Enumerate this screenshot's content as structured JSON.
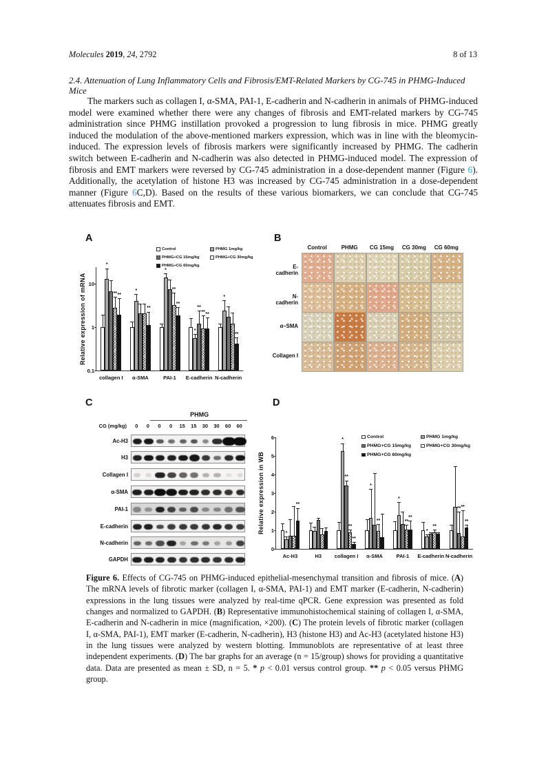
{
  "header": {
    "left_segments": [
      {
        "t": "Molecules ",
        "i": 1
      },
      {
        "t": "2019",
        "b": 1
      },
      {
        "t": ", "
      },
      {
        "t": "24",
        "i": 1
      },
      {
        "t": ", 2792"
      }
    ],
    "page_info": "8 of 13"
  },
  "section": {
    "heading": "2.4. Attenuation of Lung Inflammatory Cells and Fibrosis/EMT-Related Markers by CG-745 in PHMG-Induced Mice"
  },
  "body_segments": [
    {
      "t": "The markers such as collagen I, α-SMA, PAI-1, E-cadherin and N-cadherin in animals of PHMG-induced model were examined whether there were any changes of fibrosis and EMT-related markers by CG-745 administration since PHMG instillation provoked a progression to lung fibrosis in mice. PHMG greatly induced the modulation of the above-mentioned markers expression, which was in line with the bleomycin-induced. The expression levels of fibrosis markers were significantly increased by PHMG. The cadherin switch between E-cadherin and N-cadherin was also detected in PHMG-induced model. The expression of fibrosis and EMT markers were reversed by CG-745 administration in a dose-dependent manner (Figure "
    },
    {
      "t": "6",
      "link": 1
    },
    {
      "t": "). Additionally, the acetylation of histone H3 was increased by CG-745 administration in a dose-dependent manner (Figure "
    },
    {
      "t": "6",
      "link": 1
    },
    {
      "t": "C,D). Based on the results of these various biomarkers, we can conclude that CG-745 attenuates fibrosis and EMT."
    }
  ],
  "figure": {
    "fills": {
      "control": "#ffffff",
      "phmg": "#a8a8a8",
      "cg15": "#717171",
      "cg30": "hatch",
      "cg60": "#141414"
    },
    "panelA": {
      "label": "A"
    },
    "panelB": {
      "label": "B",
      "col_headers": [
        "Control",
        "PHMG",
        "CG 15mg",
        "CG 30mg",
        "CG 60mg"
      ],
      "row_labels": [
        "E-cadherin",
        "N-cadherin",
        "α–SMA",
        "Collagen I"
      ],
      "cell_colors": [
        [
          "#e2ae92",
          "#dccfae",
          "#ded4b6",
          "#d8cdaa",
          "#d6b488"
        ],
        [
          "#debf9c",
          "#d6b184",
          "#e0a88c",
          "#d6bd92",
          "#dcd2b2"
        ],
        [
          "#d8d2ba",
          "#c87c44",
          "#d8cfb4",
          "#d2ae80",
          "#d4c9a8"
        ],
        [
          "#d8bd98",
          "#d0a272",
          "#dcb190",
          "#d6b78e",
          "#ddcfae"
        ]
      ]
    },
    "panelC": {
      "label": "C",
      "group_header": "PHMG",
      "dose_label": "CG (mg/kg)",
      "doses": [
        "0",
        "0",
        "0",
        "0",
        "15",
        "15",
        "30",
        "30",
        "60",
        "60"
      ],
      "rows": [
        {
          "label": "Ac-H3",
          "bg": "#f2f2f2",
          "bands": [
            0.92,
            0.95,
            0.65,
            0.55,
            0.62,
            0.68,
            0.45,
            0.85,
            1,
            1
          ],
          "size": [
            1,
            1.05,
            0.8,
            0.75,
            0.8,
            0.8,
            0.7,
            1.1,
            1.45,
            1.5
          ]
        },
        {
          "label": "H3",
          "bg": "#efefef",
          "bands": [
            0.9,
            0.95,
            0.92,
            0.9,
            0.95,
            0.95,
            0.8,
            0.55,
            0.85,
            0.95
          ],
          "size": [
            1,
            1.05,
            1.05,
            1,
            1.1,
            1.15,
            0.9,
            0.8,
            1,
            1.1
          ]
        },
        {
          "label": "Collagen I",
          "bg": "#f6f5f3",
          "bands": [
            0.15,
            0.1,
            0.9,
            0.75,
            0.62,
            0.55,
            0.28,
            0.28,
            0.08,
            0.1
          ],
          "size": [
            0.8,
            0.7,
            1.1,
            1,
            0.95,
            0.9,
            0.8,
            0.8,
            0.7,
            0.7
          ]
        },
        {
          "label": "α-SMA",
          "bg": "#f0efed",
          "bands": [
            0.92,
            0.92,
            1,
            0.98,
            0.92,
            0.9,
            0.85,
            0.85,
            0.82,
            0.85
          ],
          "size": [
            1.1,
            1.1,
            1.25,
            1.2,
            1.1,
            1.05,
            1,
            1,
            0.95,
            0.95
          ]
        },
        {
          "label": "PAI-1",
          "bg": "#d7d7d7",
          "bands": [
            0.4,
            0.35,
            0.9,
            0.75,
            0.6,
            0.7,
            0.4,
            0.4,
            0.5,
            0.65
          ],
          "size": [
            0.9,
            0.85,
            1,
            0.95,
            0.85,
            0.9,
            0.85,
            0.85,
            0.9,
            1.1
          ]
        },
        {
          "label": "E-cadherin",
          "bg": "#efefef",
          "bands": [
            0.9,
            0.9,
            0.72,
            0.78,
            0.8,
            0.8,
            0.82,
            0.88,
            0.82,
            0.78
          ],
          "size": [
            1,
            1,
            0.85,
            0.9,
            0.9,
            0.9,
            0.95,
            1,
            0.95,
            0.95
          ]
        },
        {
          "label": "N-cadherin",
          "bg": "#e7e6e4",
          "bands": [
            0.6,
            0.55,
            0.7,
            0.9,
            0.3,
            0.55,
            0.5,
            0.3,
            0.35,
            0.75
          ],
          "size": [
            0.85,
            0.75,
            0.95,
            1.1,
            0.7,
            0.85,
            0.8,
            0.7,
            0.7,
            0.95
          ]
        },
        {
          "label": "GAPDH",
          "bg": "#f0f0f0",
          "bands": [
            0.92,
            0.92,
            0.9,
            0.88,
            0.82,
            0.86,
            0.86,
            0.82,
            0.86,
            0.9
          ],
          "size": [
            1.05,
            1.1,
            1.05,
            1,
            0.95,
            1,
            1,
            0.95,
            1,
            1.05
          ]
        }
      ]
    },
    "panelD": {
      "label": "D"
    }
  },
  "chart_data": [
    {
      "id": "A",
      "type": "bar",
      "scale": "log",
      "title": "",
      "xlabel": "",
      "ylabel": "Relative expression of mRNA",
      "ylim": [
        0.1,
        24
      ],
      "yticks": [
        0.1,
        1,
        10
      ],
      "grid": false,
      "legend_position": "top-right",
      "categories": [
        "collagen I",
        "α-SMA",
        "PAI-1",
        "E-cadherin",
        "N-cadherin"
      ],
      "series": [
        {
          "name": "Control",
          "fill": "control",
          "values": [
            1.0,
            1.0,
            1.0,
            1.0,
            1.0
          ],
          "err_top": [
            1.9,
            1.3,
            1.15,
            1.55,
            1.15
          ],
          "sig": [
            "",
            "",
            "",
            "",
            ""
          ]
        },
        {
          "name": "PHMG 1mg/kg",
          "fill": "phmg",
          "values": [
            13,
            4.0,
            14,
            0.55,
            2.4
          ],
          "err_top": [
            22,
            5.5,
            16.5,
            0.68,
            4.0
          ],
          "sig": [
            "*",
            "*",
            "*",
            "*",
            "*"
          ]
        },
        {
          "name": "PHMG+CG 15mg/kg",
          "fill": "cg15",
          "values": [
            6.8,
            2.1,
            7.5,
            1.2,
            1.75
          ],
          "err_top": [
            11.5,
            3.3,
            12,
            2.3,
            2.9
          ],
          "sig": [
            "",
            "",
            "",
            "**",
            ""
          ]
        },
        {
          "name": "PHMG+CG 30mg/kg",
          "fill": "cg30",
          "values": [
            2.8,
            2.1,
            3.2,
            0.92,
            1.2
          ],
          "err_top": [
            4.8,
            3.4,
            6.0,
            1.8,
            2.1
          ],
          "sig": [
            "**",
            "",
            "**",
            "**",
            ""
          ]
        },
        {
          "name": "PHMG+CG 60mg/kg",
          "fill": "cg60",
          "values": [
            1.9,
            1.1,
            1.85,
            0.93,
            0.42
          ],
          "err_top": [
            4.5,
            2.2,
            2.8,
            1.6,
            0.55
          ],
          "sig": [
            "**",
            "**",
            "**",
            "**",
            "**"
          ]
        }
      ]
    },
    {
      "id": "D",
      "type": "bar",
      "scale": "linear",
      "title": "",
      "xlabel": "",
      "ylabel": "Relative expression in WB",
      "ylim": [
        0,
        6
      ],
      "yticks": [
        0,
        1,
        2,
        3,
        4,
        5,
        6
      ],
      "grid": false,
      "legend_position": "top-right",
      "categories": [
        "Ac-H3",
        "H3",
        "collagen I",
        "α-SMA",
        "PAI-1",
        "E-cadherin",
        "N-cadherin"
      ],
      "series": [
        {
          "name": "Control",
          "fill": "control",
          "values": [
            1.0,
            1.0,
            1.0,
            1.0,
            1.0,
            1.0,
            1.0
          ],
          "err": [
            0.32,
            0.38,
            0.4,
            0.55,
            0.45,
            0.4,
            0.28
          ],
          "sig": [
            "",
            "",
            "",
            "",
            "",
            "",
            ""
          ]
        },
        {
          "name": "PHMG 1mg/kg",
          "fill": "phmg",
          "values": [
            0.52,
            0.95,
            5.25,
            1.65,
            1.8,
            0.65,
            2.25
          ],
          "err": [
            0.1,
            0.2,
            0.4,
            1.55,
            0.7,
            0.08,
            2.15
          ],
          "sig": [
            "*",
            "",
            "*",
            "*",
            "*",
            "*",
            ""
          ]
        },
        {
          "name": "PHMG+CG 15mg/kg",
          "fill": "cg15",
          "values": [
            0.7,
            1.55,
            3.4,
            1.3,
            1.35,
            0.8,
            0.85
          ],
          "err": [
            0.85,
            0.1,
            0.25,
            2.75,
            0.6,
            0.07,
            1.1
          ],
          "sig": [
            "",
            "",
            "**",
            "",
            "",
            "",
            "**"
          ]
        },
        {
          "name": "PHMG+CG 30mg/kg",
          "fill": "cg30",
          "values": [
            0.7,
            0.78,
            0.9,
            0.95,
            1.02,
            0.9,
            0.68
          ],
          "err": [
            1.55,
            0.3,
            0.1,
            0.35,
            0.25,
            0.1,
            1.35
          ],
          "sig": [
            "",
            "",
            "**",
            "**",
            "**",
            "**",
            "**"
          ]
        },
        {
          "name": "PHMG+CG 60mg/kg",
          "fill": "cg60",
          "values": [
            1.52,
            0.95,
            0.27,
            0.62,
            1.02,
            0.82,
            1.15
          ],
          "err": [
            0.65,
            0.15,
            0.07,
            1.25,
            0.45,
            0.05,
            0.1
          ],
          "sig": [
            "**",
            "",
            "**",
            "",
            "**",
            "",
            "**"
          ]
        }
      ]
    }
  ],
  "caption_segments": [
    {
      "t": "Figure 6.",
      "b": 1
    },
    {
      "t": " Effects of CG-745 on PHMG-induced epithelial-mesenchymal transition and fibrosis of mice. ("
    },
    {
      "t": "A",
      "b": 1
    },
    {
      "t": ") The mRNA levels of fibrotic marker (collagen I, α-SMA, PAI-1) and EMT marker (E-cadherin, N-cadherin) expressions in the lung tissues were analyzed by real-time qPCR. Gene expression was presented as fold changes and normalized to GAPDH. ("
    },
    {
      "t": "B",
      "b": 1
    },
    {
      "t": ") Representative immunohistochemical staining of collagen I, α-SMA, E-cadherin and N-cadherin in mice (magnification, ×200). ("
    },
    {
      "t": "C",
      "b": 1
    },
    {
      "t": ") The protein levels of fibrotic marker (collagen I, α-SMA, PAI-1), EMT marker (E-cadherin, N-cadherin), H3 (histone H3) and Ac-H3 (acetylated histone H3) in the lung tissues were analyzed by western blotting. Immunoblots are representative of at least three independent experiments. ("
    },
    {
      "t": "D",
      "b": 1
    },
    {
      "t": ") The bar graphs for an average (n = 15/group) shows for providing a quantitative data. Data are presented as mean ± SD, n = 5. "
    },
    {
      "t": "*",
      "b": 1
    },
    {
      "t": " "
    },
    {
      "t": "p",
      "i": 1
    },
    {
      "t": " < 0.01 versus control group. "
    },
    {
      "t": "**",
      "b": 1
    },
    {
      "t": " "
    },
    {
      "t": "p",
      "i": 1
    },
    {
      "t": " < 0.05 versus PHMG group."
    }
  ]
}
